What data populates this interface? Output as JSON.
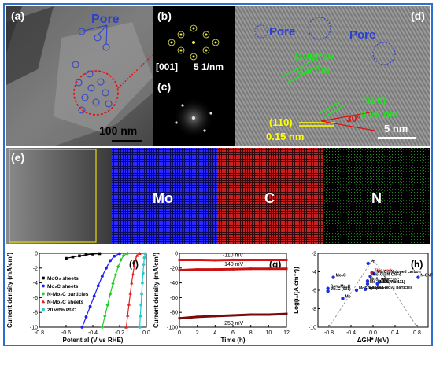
{
  "panels": {
    "a": {
      "label": "(a)",
      "pore": "Pore",
      "scale": "100 nm"
    },
    "b": {
      "label": "(b)",
      "zone": "[001]",
      "scale": "5 1/nm"
    },
    "c": {
      "label": "(c)"
    },
    "d": {
      "label": "(d)",
      "pore1": "Pore",
      "pore2": "Pore",
      "f1": "(100)*16",
      "f1v": "2.6 nm",
      "f2": "(100)",
      "f2v": "0.26 nm",
      "f3": "(110)",
      "f3v": "0.15 nm",
      "angle": "30°",
      "scale": "5 nm"
    },
    "e": {
      "label": "(e)",
      "mo": "Mo",
      "c": "C",
      "n": "N"
    },
    "f": {
      "label": "(f)"
    },
    "g": {
      "label": "(g)"
    },
    "h": {
      "label": "(h)"
    }
  },
  "chart_data": [
    {
      "id": "f",
      "type": "line",
      "xlabel": "Potential (V vs RHE)",
      "ylabel": "Current density (mA/cm²)",
      "xlim": [
        -0.8,
        0.0
      ],
      "ylim": [
        -10,
        0
      ],
      "xticks": [
        "-0.8",
        "-0.6",
        "-0.4",
        "-0.2",
        "0.0"
      ],
      "yticks": [
        "0",
        "-2",
        "-4",
        "-6",
        "-8",
        "-10"
      ],
      "legend": "left",
      "series": [
        {
          "name": "MoO₂ sheets",
          "color": "#000000",
          "marker": "square",
          "x": [
            -0.6,
            -0.55,
            -0.5,
            -0.45,
            -0.4,
            -0.35
          ],
          "y": [
            -0.7,
            -0.5,
            -0.35,
            -0.2,
            -0.1,
            -0.05
          ]
        },
        {
          "name": "Mo₂C sheets",
          "color": "#1a1aff",
          "marker": "circle",
          "x": [
            -0.48,
            -0.45,
            -0.42,
            -0.39,
            -0.36,
            -0.33,
            -0.3,
            -0.27,
            -0.24,
            -0.2
          ],
          "y": [
            -10,
            -8.6,
            -7.2,
            -5.8,
            -4.4,
            -3.1,
            -2.0,
            -1.0,
            -0.4,
            -0.05
          ]
        },
        {
          "name": "N-Mo₂C particles",
          "color": "#22cc22",
          "marker": "diamond",
          "x": [
            -0.33,
            -0.31,
            -0.29,
            -0.27,
            -0.25,
            -0.23,
            -0.21,
            -0.19,
            -0.17,
            -0.14
          ],
          "y": [
            -10,
            -8.5,
            -7.0,
            -5.5,
            -4.1,
            -2.9,
            -1.8,
            -0.9,
            -0.3,
            -0.02
          ]
        },
        {
          "name": "N-Mo₂C sheets",
          "color": "#e02020",
          "marker": "triangle",
          "x": [
            -0.15,
            -0.14,
            -0.13,
            -0.12,
            -0.11,
            -0.1,
            -0.09,
            -0.08,
            -0.07,
            -0.05
          ],
          "y": [
            -10,
            -8.4,
            -6.9,
            -5.4,
            -4.0,
            -2.8,
            -1.7,
            -0.8,
            -0.3,
            -0.02
          ]
        },
        {
          "name": "20 wt% Pt/C",
          "color": "#22cccc",
          "marker": "circle",
          "x": [
            -0.05,
            -0.045,
            -0.04,
            -0.035,
            -0.03,
            -0.025,
            -0.02,
            -0.015,
            -0.01
          ],
          "y": [
            -10,
            -8.5,
            -7.0,
            -5.5,
            -4.0,
            -2.7,
            -1.5,
            -0.6,
            -0.05
          ]
        }
      ]
    },
    {
      "id": "g",
      "type": "line",
      "xlabel": "Time (h)",
      "ylabel": "Current density (mA/cm²)",
      "xlim": [
        0,
        12
      ],
      "ylim": [
        -100,
        0
      ],
      "xticks": [
        "0",
        "2",
        "4",
        "6",
        "8",
        "10",
        "12"
      ],
      "yticks": [
        "0",
        "-20",
        "-40",
        "-60",
        "-80",
        "-100"
      ],
      "series": [
        {
          "name": "-110 mV",
          "color": "#e01010",
          "x": [
            0,
            2,
            4,
            6,
            8,
            10,
            12
          ],
          "y": [
            -9,
            -9,
            -9.5,
            -9,
            -9,
            -9,
            -9
          ]
        },
        {
          "name": "-140 mV",
          "color": "#cc1010",
          "x": [
            0,
            2,
            4,
            6,
            8,
            10,
            12
          ],
          "y": [
            -23,
            -22,
            -22,
            -21.5,
            -21,
            -21,
            -21
          ]
        },
        {
          "name": "-250 mV",
          "color": "#7a0a0a",
          "x": [
            0,
            2,
            4,
            6,
            8,
            10,
            12
          ],
          "y": [
            -88,
            -86,
            -85,
            -84,
            -83,
            -83,
            -82
          ]
        }
      ]
    },
    {
      "id": "h",
      "type": "scatter",
      "xlabel": "ΔGH* /(eV)",
      "ylabel": "Log(i₀/(A cm⁻²))",
      "xlim": [
        -1.0,
        1.0
      ],
      "ylim": [
        -10,
        -2
      ],
      "xticks": [
        "-0.8",
        "-0.4",
        "0.0",
        "0.4",
        "0.8"
      ],
      "yticks": [
        "-2",
        "-4",
        "-6",
        "-8",
        "-10"
      ],
      "points": [
        {
          "label": "Pt",
          "x": -0.09,
          "y": -3.1
        },
        {
          "label": "This work",
          "x": -0.02,
          "y": -4.1,
          "highlight": true
        },
        {
          "label": "Mo₂C@N-doped carbon",
          "x": 0.02,
          "y": -4.2
        },
        {
          "label": "Mo₂C@N-CNFs",
          "x": -0.05,
          "y": -4.5
        },
        {
          "label": "N-CNFs",
          "x": 0.82,
          "y": -4.6
        },
        {
          "label": "Mo₂C",
          "x": -0.72,
          "y": -4.6
        },
        {
          "label": "MoS₂ edge",
          "x": -0.1,
          "y": -5.0
        },
        {
          "label": "Mo₂C NSs",
          "x": -0.1,
          "y": -5.3
        },
        {
          "label": "Mo₂C@C",
          "x": 0.12,
          "y": -5.1
        },
        {
          "label": "MoS₂/Au(111)",
          "x": 0.08,
          "y": -5.3
        },
        {
          "label": "Com-Mo₂C",
          "x": -0.82,
          "y": -5.8
        },
        {
          "label": "Mo₂C (001)",
          "x": -0.82,
          "y": -6.1
        },
        {
          "label": "N-doped Mo₂C particles",
          "x": -0.14,
          "y": -5.9
        },
        {
          "label": "MoS₂/graphene",
          "x": -0.3,
          "y": -6.0
        },
        {
          "label": "Mo",
          "x": -0.55,
          "y": -6.9
        }
      ]
    }
  ]
}
